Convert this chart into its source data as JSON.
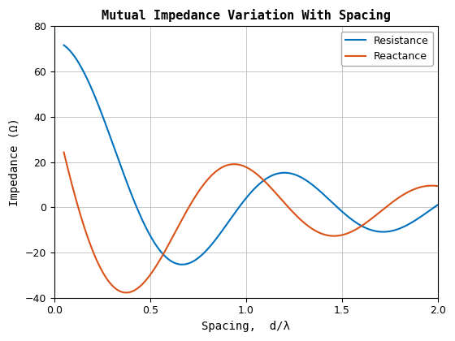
{
  "title": "Mutual Impedance Variation With Spacing",
  "xlabel": "Spacing,  d/λ",
  "ylabel": "Impedance (Ω)",
  "xlim": [
    0,
    2
  ],
  "ylim": [
    -40,
    80
  ],
  "xticks": [
    0,
    0.5,
    1.0,
    1.5,
    2.0
  ],
  "yticks": [
    -40,
    -20,
    0,
    20,
    40,
    60,
    80
  ],
  "resistance_color": "#0072BD",
  "reactance_color": "#D95319",
  "legend_labels": [
    "Resistance",
    "Reactance"
  ],
  "linewidth": 1.5,
  "grid": true,
  "background_color": "#ffffff"
}
